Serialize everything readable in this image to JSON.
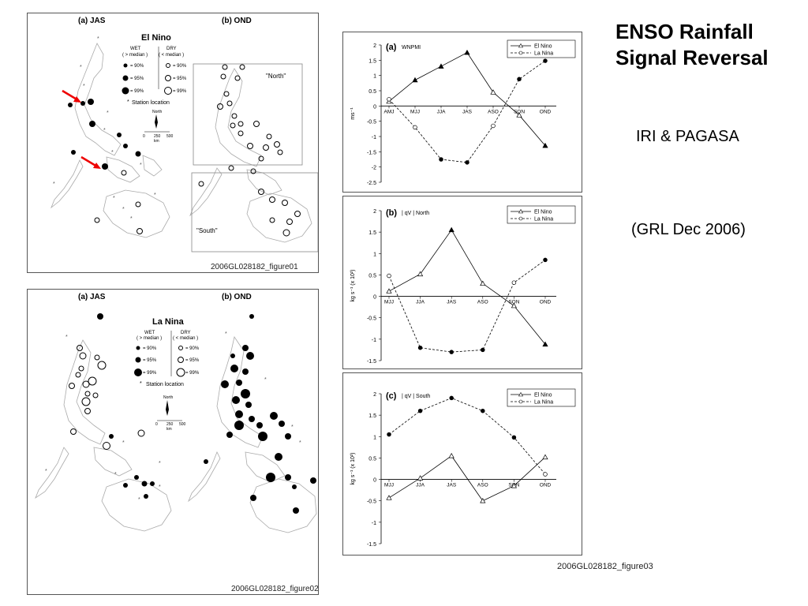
{
  "slide": {
    "title_line1": "ENSO Rainfall",
    "title_line2": "Signal Reversal",
    "credit1": "IRI & PAGASA",
    "credit2": "(GRL Dec 2006)"
  },
  "map1": {
    "label_a": "(a) JAS",
    "label_b": "(b)  OND",
    "heading": "El Nino",
    "wet": "WET",
    "wet_sub": "( > median )",
    "dry": "DRY",
    "dry_sub": "( < median )",
    "p90": "= 90%",
    "p95": "= 95%",
    "p99": "= 99%",
    "station": "Station location",
    "north_box": "\"North\"",
    "south_box": "\"South\"",
    "north_arrow": "North",
    "scale_0": "0",
    "scale_250": "250",
    "scale_500": "500",
    "scale_unit": "km",
    "figid": "2006GL028182_figure01"
  },
  "map2": {
    "label_a": "(a) JAS",
    "label_b": "(b)  OND",
    "heading": "La Nina",
    "wet": "WET",
    "wet_sub": "( > median )",
    "dry": "DRY",
    "dry_sub": "( < median )",
    "p90": "= 90%",
    "p95": "= 95%",
    "p99": "= 99%",
    "station": "Station location",
    "north_arrow": "North",
    "scale_0": "0",
    "scale_250": "250",
    "scale_500": "500",
    "scale_unit": "km",
    "figid": "2006GL028182_figure02"
  },
  "fig3_id": "2006GL028182_figure03",
  "chart_data": [
    {
      "type": "line",
      "panel": "(a)",
      "subtitle": "WNPMI",
      "categories": [
        "AMJ",
        "MJJ",
        "JJA",
        "JAS",
        "ASO",
        "SON",
        "OND"
      ],
      "series": [
        {
          "name": "El Nino",
          "values": [
            0.15,
            0.85,
            1.3,
            1.75,
            0.45,
            -0.3,
            -1.3
          ]
        },
        {
          "name": "La Nina",
          "values": [
            0.22,
            -0.7,
            -1.75,
            -1.85,
            -0.65,
            0.88,
            1.48
          ]
        }
      ],
      "ylabel": "ms⁻¹",
      "ylim": [
        -2.5,
        2
      ],
      "yticks": [
        2,
        1.5,
        1,
        0.5,
        0,
        -0.5,
        -1,
        -1.5,
        -2,
        -2.5
      ],
      "legend": "top-right"
    },
    {
      "type": "line",
      "panel": "(b)",
      "subtitle": "| qV |   North",
      "categories": [
        "MJJ",
        "JJA",
        "JAS",
        "ASO",
        "SON",
        "OND"
      ],
      "series": [
        {
          "name": "El Nino",
          "values": [
            0.12,
            0.52,
            1.55,
            0.3,
            -0.22,
            -1.12
          ]
        },
        {
          "name": "La Nina",
          "values": [
            0.48,
            -1.2,
            -1.3,
            -1.25,
            0.32,
            0.85
          ]
        }
      ],
      "ylabel": "kg s⁻¹ (x 10²)",
      "ylim": [
        -1.5,
        2
      ],
      "yticks": [
        2,
        1.5,
        1,
        0.5,
        0,
        -0.5,
        -1,
        -1.5
      ],
      "legend": "top-right"
    },
    {
      "type": "line",
      "panel": "(c)",
      "subtitle": "| qV |   South",
      "categories": [
        "MJJ",
        "JJA",
        "JAS",
        "ASO",
        "SON",
        "OND"
      ],
      "series": [
        {
          "name": "El Nino",
          "values": [
            -0.43,
            0.03,
            0.55,
            -0.5,
            -0.15,
            0.52
          ]
        },
        {
          "name": "La Nina",
          "values": [
            1.05,
            1.6,
            1.9,
            1.6,
            0.98,
            0.12
          ]
        }
      ],
      "ylabel": "kg s⁻¹ (x 10²)",
      "ylim": [
        -1.5,
        2
      ],
      "yticks": [
        2,
        1.5,
        1,
        0.5,
        0,
        -0.5,
        -1,
        -1.5
      ],
      "legend": "top-right"
    }
  ]
}
